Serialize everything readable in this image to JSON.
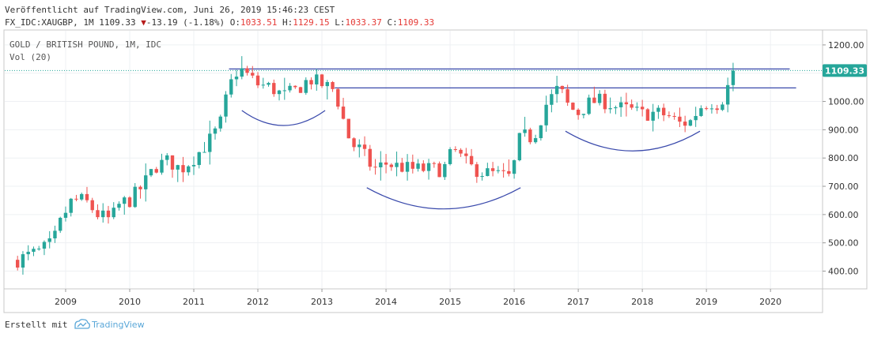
{
  "header": {
    "published": "Veröffentlicht auf TradingView.com, Juni 26, 2019 15:46:23 CEST",
    "symbol": "FX_IDC:XAUGBP, 1M 1109.33",
    "change_arrow": "▼",
    "change": "-13.19 (-1.18%)",
    "o_label": "O:",
    "o_value": "1033.51",
    "h_label": "H:",
    "h_value": "1129.15",
    "l_label": "L:",
    "l_value": "1033.37",
    "c_label": "C:",
    "c_value": "1109.33"
  },
  "footer": {
    "created_with": "Erstellt mit",
    "brand": "TradingView"
  },
  "chart_data": {
    "type": "candlestick",
    "legend": [
      "GOLD / BRITISH POUND, 1M, IDC",
      "Vol (20)"
    ],
    "y_ticks": [
      "1200.00",
      "1100.00",
      "1000.00",
      "900.00",
      "800.00",
      "700.00",
      "600.00",
      "500.00",
      "400.00"
    ],
    "y_tick_values": [
      1200,
      1100,
      1000,
      900,
      800,
      700,
      600,
      500,
      400
    ],
    "x_ticks": [
      "2009",
      "2010",
      "2011",
      "2012",
      "2013",
      "2014",
      "2015",
      "2016",
      "2017",
      "2018",
      "2019",
      "2020"
    ],
    "x_tick_values": [
      2009,
      2010,
      2011,
      2012,
      2013,
      2014,
      2015,
      2016,
      2017,
      2018,
      2019,
      2020
    ],
    "y_range": [
      340,
      1250
    ],
    "x_range": [
      2008.05,
      2020.8
    ],
    "last_price": "1109.33",
    "last_price_value": 1109.33,
    "colors": {
      "up": "#26a69a",
      "down": "#ef5350",
      "lines": "#3949ab",
      "price": "#26a69a"
    },
    "horizontal_lines": [
      {
        "y": 1115,
        "x0": 2011.55,
        "x1": 2020.3
      },
      {
        "y": 1048,
        "x0": 2013.2,
        "x1": 2020.4
      }
    ],
    "arcs": [
      {
        "x0": 2011.75,
        "x1": 2013.05,
        "y_edge": 968,
        "y_bottom": 915
      },
      {
        "x0": 2013.7,
        "x1": 2016.1,
        "y_edge": 695,
        "y_bottom": 620
      },
      {
        "x0": 2016.8,
        "x1": 2018.9,
        "y_edge": 895,
        "y_bottom": 825
      }
    ],
    "trend": [
      [
        2008.25,
        440
      ],
      [
        2008.6,
        470
      ],
      [
        2008.8,
        500
      ],
      [
        2008.95,
        590
      ],
      [
        2009.1,
        650
      ],
      [
        2009.3,
        650
      ],
      [
        2009.5,
        600
      ],
      [
        2009.7,
        580
      ],
      [
        2009.85,
        640
      ],
      [
        2010.0,
        650
      ],
      [
        2010.2,
        700
      ],
      [
        2010.4,
        770
      ],
      [
        2010.6,
        790
      ],
      [
        2010.8,
        760
      ],
      [
        2011.0,
        800
      ],
      [
        2011.2,
        850
      ],
      [
        2011.4,
        910
      ],
      [
        2011.55,
        1050
      ],
      [
        2011.7,
        1120
      ],
      [
        2011.85,
        1090
      ],
      [
        2012.0,
        1060
      ],
      [
        2012.2,
        1050
      ],
      [
        2012.4,
        1020
      ],
      [
        2012.6,
        1040
      ],
      [
        2012.8,
        1080
      ],
      [
        2013.0,
        1060
      ],
      [
        2013.2,
        1040
      ],
      [
        2013.3,
        960
      ],
      [
        2013.45,
        850
      ],
      [
        2013.6,
        830
      ],
      [
        2013.8,
        760
      ],
      [
        2014.0,
        780
      ],
      [
        2014.2,
        770
      ],
      [
        2014.4,
        760
      ],
      [
        2014.6,
        760
      ],
      [
        2014.9,
        760
      ],
      [
        2015.05,
        830
      ],
      [
        2015.3,
        770
      ],
      [
        2015.5,
        750
      ],
      [
        2015.75,
        740
      ],
      [
        2015.95,
        730
      ],
      [
        2016.1,
        880
      ],
      [
        2016.3,
        870
      ],
      [
        2016.5,
        990
      ],
      [
        2016.7,
        1050
      ],
      [
        2016.85,
        980
      ],
      [
        2017.0,
        960
      ],
      [
        2017.2,
        1000
      ],
      [
        2017.4,
        1000
      ],
      [
        2017.6,
        980
      ],
      [
        2017.8,
        970
      ],
      [
        2018.0,
        955
      ],
      [
        2018.2,
        960
      ],
      [
        2018.4,
        950
      ],
      [
        2018.6,
        920
      ],
      [
        2018.75,
        930
      ],
      [
        2018.9,
        980
      ],
      [
        2019.05,
        1000
      ],
      [
        2019.2,
        990
      ],
      [
        2019.3,
        1030
      ],
      [
        2019.42,
        1109
      ]
    ]
  }
}
